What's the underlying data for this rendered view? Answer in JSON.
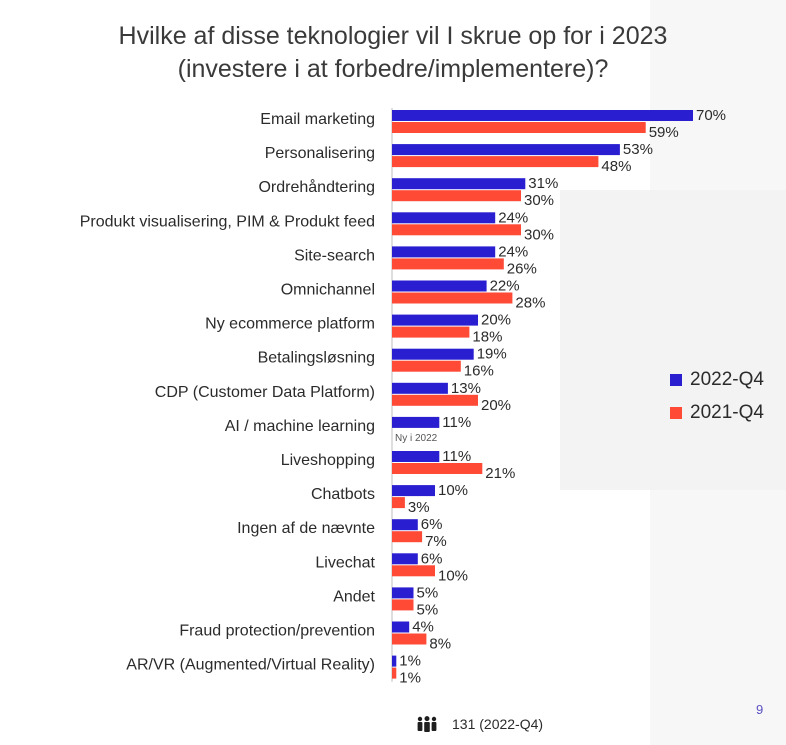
{
  "title_line1": "Hvilke af disse teknologier vil I skrue op for i 2023",
  "title_line2": "(investere i at forbedre/implementere)?",
  "colors": {
    "q2022": "#2a1ed1",
    "q2021": "#ff4a36"
  },
  "chart_data": {
    "type": "bar",
    "orientation": "horizontal",
    "title": "Hvilke af disse teknologier vil I skrue op for i 2023 (investere i at forbedre/implementere)?",
    "categories": [
      "Email marketing",
      "Personalisering",
      "Ordrehåndtering",
      "Produkt visualisering, PIM & Produkt feed",
      "Site-search",
      "Omnichannel",
      "Ny ecommerce platform",
      "Betalingsløsning",
      "CDP (Customer Data Platform)",
      "AI / machine learning",
      "Liveshopping",
      "Chatbots",
      "Ingen af de nævnte",
      "Livechat",
      "Andet",
      "Fraud protection/prevention",
      "AR/VR (Augmented/Virtual Reality)"
    ],
    "series": [
      {
        "name": "2022-Q4",
        "values": [
          70,
          53,
          31,
          24,
          24,
          22,
          20,
          19,
          13,
          11,
          11,
          10,
          6,
          6,
          5,
          4,
          1
        ]
      },
      {
        "name": "2021-Q4",
        "values": [
          59,
          48,
          30,
          30,
          26,
          28,
          18,
          16,
          20,
          null,
          21,
          3,
          7,
          10,
          5,
          8,
          1
        ]
      }
    ],
    "value_labels": {
      "2022-Q4": [
        "70%",
        "53%",
        "31%",
        "24%",
        "24%",
        "22%",
        "20%",
        "19%",
        "13%",
        "11%",
        "11%",
        "10%",
        "6%",
        "6%",
        "5%",
        "4%",
        "1%"
      ],
      "2021-Q4": [
        "59%",
        "48%",
        "30%",
        "30%",
        "26%",
        "28%",
        "18%",
        "16%",
        "20%",
        "Ny i 2022",
        "21%",
        "3%",
        "7%",
        "10%",
        "5%",
        "8%",
        "1%"
      ]
    },
    "unit": "%",
    "legend_position": "right",
    "grid": false
  },
  "legend": [
    {
      "label": "2022-Q4",
      "color": "#2a1ed1"
    },
    {
      "label": "2021-Q4",
      "color": "#ff4a36"
    }
  ],
  "footer_text": "131 (2022-Q4)",
  "page_number": "9"
}
